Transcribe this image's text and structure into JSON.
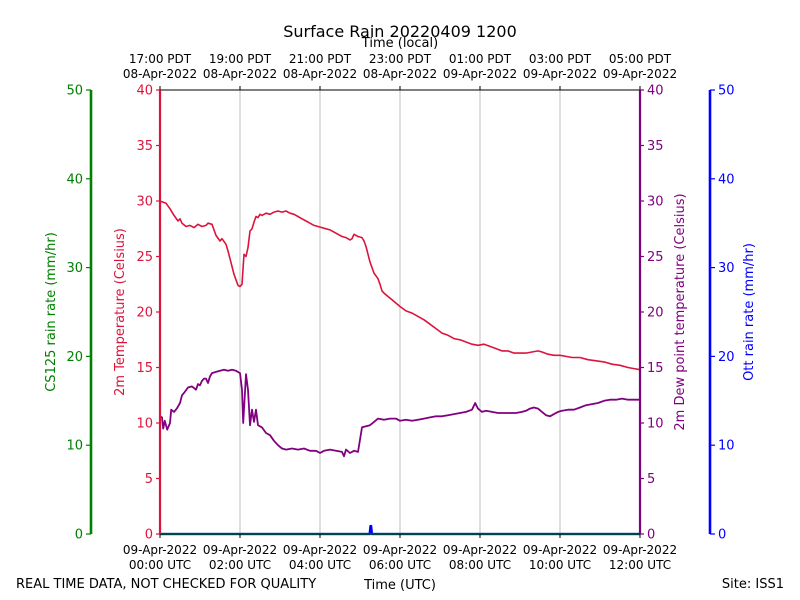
{
  "colors": {
    "temperature": "#dc143c",
    "dewpoint": "#800080",
    "cs125": "#008000",
    "ott": "#0000ff",
    "grid": "#b0b0b0",
    "cs125_trace": "#008b8b"
  },
  "chart_data": {
    "type": "line",
    "title": "Surface Rain 20220409 1200",
    "top_axis_label": "Time (local)",
    "xlabel": "Time (UTC)",
    "x_unit": "hours since 09-Apr-2022 00:00 UTC",
    "xlim": [
      0,
      12
    ],
    "xticks_utc": [
      {
        "x": 0,
        "date": "09-Apr-2022",
        "time": "00:00 UTC"
      },
      {
        "x": 2,
        "date": "09-Apr-2022",
        "time": "02:00 UTC"
      },
      {
        "x": 4,
        "date": "09-Apr-2022",
        "time": "04:00 UTC"
      },
      {
        "x": 6,
        "date": "09-Apr-2022",
        "time": "06:00 UTC"
      },
      {
        "x": 8,
        "date": "09-Apr-2022",
        "time": "08:00 UTC"
      },
      {
        "x": 10,
        "date": "09-Apr-2022",
        "time": "10:00 UTC"
      },
      {
        "x": 12,
        "date": "09-Apr-2022",
        "time": "12:00 UTC"
      }
    ],
    "xticks_local": [
      {
        "x": 0,
        "time": "17:00 PDT",
        "date": "08-Apr-2022"
      },
      {
        "x": 2,
        "time": "19:00 PDT",
        "date": "08-Apr-2022"
      },
      {
        "x": 4,
        "time": "21:00 PDT",
        "date": "08-Apr-2022"
      },
      {
        "x": 6,
        "time": "23:00 PDT",
        "date": "08-Apr-2022"
      },
      {
        "x": 8,
        "time": "01:00 PDT",
        "date": "09-Apr-2022"
      },
      {
        "x": 10,
        "time": "03:00 PDT",
        "date": "09-Apr-2022"
      },
      {
        "x": 12,
        "time": "05:00 PDT",
        "date": "09-Apr-2022"
      }
    ],
    "axes": {
      "temperature": {
        "label": "2m Temperature (Celsius)",
        "ylim": [
          0,
          40
        ],
        "ticks": [
          0,
          5,
          10,
          15,
          20,
          25,
          30,
          35,
          40
        ]
      },
      "dewpoint": {
        "label": "2m Dew point temperature (Celsius)",
        "ylim": [
          0,
          40
        ],
        "ticks": [
          0,
          5,
          10,
          15,
          20,
          25,
          30,
          35,
          40
        ]
      },
      "cs125": {
        "label": "CS125 rain rate (mm/hr)",
        "ylim": [
          0,
          50
        ],
        "ticks": [
          0,
          10,
          20,
          30,
          40,
          50
        ]
      },
      "ott": {
        "label": "Ott rain rate (mm/hr)",
        "ylim": [
          0,
          50
        ],
        "ticks": [
          0,
          10,
          20,
          30,
          40,
          50
        ]
      }
    },
    "series": [
      {
        "name": "2m Temperature",
        "axis": "temperature",
        "points": [
          [
            0,
            30
          ],
          [
            0.15,
            29.8
          ],
          [
            0.25,
            29.3
          ],
          [
            0.35,
            28.7
          ],
          [
            0.45,
            28.2
          ],
          [
            0.5,
            28.4
          ],
          [
            0.55,
            28
          ],
          [
            0.65,
            27.7
          ],
          [
            0.75,
            27.8
          ],
          [
            0.85,
            27.6
          ],
          [
            0.95,
            27.9
          ],
          [
            1.05,
            27.7
          ],
          [
            1.15,
            27.8
          ],
          [
            1.2,
            28
          ],
          [
            1.3,
            27.9
          ],
          [
            1.35,
            27.4
          ],
          [
            1.4,
            26.9
          ],
          [
            1.5,
            26.4
          ],
          [
            1.55,
            26.6
          ],
          [
            1.65,
            26.1
          ],
          [
            1.7,
            25.5
          ],
          [
            1.75,
            24.8
          ],
          [
            1.8,
            24.1
          ],
          [
            1.85,
            23.4
          ],
          [
            1.9,
            22.9
          ],
          [
            1.95,
            22.4
          ],
          [
            2.0,
            22.3
          ],
          [
            2.05,
            22.5
          ],
          [
            2.1,
            25.2
          ],
          [
            2.15,
            25.0
          ],
          [
            2.2,
            25.8
          ],
          [
            2.25,
            27.3
          ],
          [
            2.3,
            27.5
          ],
          [
            2.35,
            28.1
          ],
          [
            2.4,
            28.6
          ],
          [
            2.45,
            28.5
          ],
          [
            2.5,
            28.8
          ],
          [
            2.55,
            28.7
          ],
          [
            2.65,
            28.9
          ],
          [
            2.75,
            28.8
          ],
          [
            2.85,
            29.0
          ],
          [
            2.95,
            29.1
          ],
          [
            3.05,
            29.0
          ],
          [
            3.15,
            29.1
          ],
          [
            3.25,
            28.9
          ],
          [
            3.35,
            28.8
          ],
          [
            3.45,
            28.6
          ],
          [
            3.55,
            28.4
          ],
          [
            3.65,
            28.2
          ],
          [
            3.75,
            28.0
          ],
          [
            3.85,
            27.8
          ],
          [
            3.95,
            27.7
          ],
          [
            4.05,
            27.6
          ],
          [
            4.15,
            27.5
          ],
          [
            4.25,
            27.4
          ],
          [
            4.35,
            27.2
          ],
          [
            4.45,
            27.0
          ],
          [
            4.55,
            26.8
          ],
          [
            4.65,
            26.7
          ],
          [
            4.75,
            26.5
          ],
          [
            4.8,
            26.6
          ],
          [
            4.85,
            27.0
          ],
          [
            4.95,
            26.8
          ],
          [
            5.05,
            26.7
          ],
          [
            5.1,
            26.4
          ],
          [
            5.15,
            25.9
          ],
          [
            5.2,
            25.2
          ],
          [
            5.25,
            24.5
          ],
          [
            5.3,
            24.0
          ],
          [
            5.35,
            23.5
          ],
          [
            5.45,
            23.0
          ],
          [
            5.5,
            22.5
          ],
          [
            5.55,
            21.9
          ],
          [
            5.6,
            21.7
          ],
          [
            5.7,
            21.4
          ],
          [
            5.8,
            21.1
          ],
          [
            5.9,
            20.8
          ],
          [
            6.0,
            20.5
          ],
          [
            6.15,
            20.1
          ],
          [
            6.3,
            19.9
          ],
          [
            6.45,
            19.6
          ],
          [
            6.6,
            19.3
          ],
          [
            6.75,
            18.9
          ],
          [
            6.9,
            18.5
          ],
          [
            7.05,
            18.1
          ],
          [
            7.2,
            17.9
          ],
          [
            7.35,
            17.6
          ],
          [
            7.5,
            17.5
          ],
          [
            7.65,
            17.3
          ],
          [
            7.8,
            17.1
          ],
          [
            7.95,
            17.0
          ],
          [
            8.1,
            17.1
          ],
          [
            8.25,
            16.9
          ],
          [
            8.4,
            16.7
          ],
          [
            8.55,
            16.5
          ],
          [
            8.7,
            16.5
          ],
          [
            8.85,
            16.3
          ],
          [
            9.0,
            16.3
          ],
          [
            9.15,
            16.3
          ],
          [
            9.3,
            16.4
          ],
          [
            9.45,
            16.5
          ],
          [
            9.55,
            16.4
          ],
          [
            9.7,
            16.2
          ],
          [
            9.85,
            16.1
          ],
          [
            10.0,
            16.1
          ],
          [
            10.15,
            16.0
          ],
          [
            10.3,
            15.9
          ],
          [
            10.5,
            15.9
          ],
          [
            10.7,
            15.7
          ],
          [
            10.9,
            15.6
          ],
          [
            11.1,
            15.5
          ],
          [
            11.3,
            15.3
          ],
          [
            11.5,
            15.2
          ],
          [
            11.7,
            15.0
          ],
          [
            11.85,
            14.9
          ],
          [
            12,
            14.8
          ]
        ]
      },
      {
        "name": "2m Dew point temperature",
        "axis": "dewpoint",
        "points": [
          [
            0,
            10.6
          ],
          [
            0.05,
            10.5
          ],
          [
            0.08,
            9.5
          ],
          [
            0.12,
            10.2
          ],
          [
            0.18,
            9.4
          ],
          [
            0.25,
            10.0
          ],
          [
            0.28,
            11.2
          ],
          [
            0.35,
            11.0
          ],
          [
            0.42,
            11.3
          ],
          [
            0.5,
            11.8
          ],
          [
            0.55,
            12.5
          ],
          [
            0.62,
            12.8
          ],
          [
            0.7,
            13.2
          ],
          [
            0.8,
            13.3
          ],
          [
            0.9,
            13.0
          ],
          [
            0.95,
            13.5
          ],
          [
            1.0,
            13.4
          ],
          [
            1.05,
            13.8
          ],
          [
            1.1,
            14.0
          ],
          [
            1.15,
            14.0
          ],
          [
            1.2,
            13.6
          ],
          [
            1.25,
            14.2
          ],
          [
            1.3,
            14.5
          ],
          [
            1.4,
            14.6
          ],
          [
            1.5,
            14.7
          ],
          [
            1.6,
            14.8
          ],
          [
            1.7,
            14.7
          ],
          [
            1.8,
            14.8
          ],
          [
            1.9,
            14.7
          ],
          [
            2.0,
            14.5
          ],
          [
            2.05,
            13.0
          ],
          [
            2.08,
            10.0
          ],
          [
            2.12,
            12.5
          ],
          [
            2.15,
            14.4
          ],
          [
            2.2,
            13.0
          ],
          [
            2.25,
            9.8
          ],
          [
            2.3,
            11.2
          ],
          [
            2.35,
            10.1
          ],
          [
            2.4,
            11.2
          ],
          [
            2.45,
            9.8
          ],
          [
            2.55,
            9.6
          ],
          [
            2.65,
            9.1
          ],
          [
            2.75,
            8.9
          ],
          [
            2.85,
            8.4
          ],
          [
            2.95,
            8.0
          ],
          [
            3.05,
            7.7
          ],
          [
            3.15,
            7.6
          ],
          [
            3.3,
            7.7
          ],
          [
            3.45,
            7.6
          ],
          [
            3.6,
            7.7
          ],
          [
            3.75,
            7.5
          ],
          [
            3.9,
            7.5
          ],
          [
            4.0,
            7.3
          ],
          [
            4.1,
            7.5
          ],
          [
            4.25,
            7.6
          ],
          [
            4.4,
            7.5
          ],
          [
            4.55,
            7.4
          ],
          [
            4.6,
            7.0
          ],
          [
            4.65,
            7.6
          ],
          [
            4.75,
            7.3
          ],
          [
            4.85,
            7.5
          ],
          [
            4.95,
            7.4
          ],
          [
            5.05,
            9.6
          ],
          [
            5.15,
            9.7
          ],
          [
            5.25,
            9.8
          ],
          [
            5.35,
            10.1
          ],
          [
            5.45,
            10.4
          ],
          [
            5.6,
            10.3
          ],
          [
            5.75,
            10.4
          ],
          [
            5.9,
            10.4
          ],
          [
            6.0,
            10.2
          ],
          [
            6.15,
            10.3
          ],
          [
            6.3,
            10.2
          ],
          [
            6.45,
            10.3
          ],
          [
            6.6,
            10.4
          ],
          [
            6.75,
            10.5
          ],
          [
            6.9,
            10.6
          ],
          [
            7.05,
            10.6
          ],
          [
            7.2,
            10.7
          ],
          [
            7.35,
            10.8
          ],
          [
            7.5,
            10.9
          ],
          [
            7.65,
            11.0
          ],
          [
            7.8,
            11.2
          ],
          [
            7.88,
            11.8
          ],
          [
            7.95,
            11.3
          ],
          [
            8.05,
            11.0
          ],
          [
            8.15,
            11.1
          ],
          [
            8.3,
            11.0
          ],
          [
            8.45,
            10.9
          ],
          [
            8.6,
            10.9
          ],
          [
            8.75,
            10.9
          ],
          [
            8.9,
            10.9
          ],
          [
            9.05,
            11.0
          ],
          [
            9.15,
            11.1
          ],
          [
            9.25,
            11.3
          ],
          [
            9.35,
            11.4
          ],
          [
            9.45,
            11.3
          ],
          [
            9.55,
            11.0
          ],
          [
            9.65,
            10.7
          ],
          [
            9.75,
            10.6
          ],
          [
            9.85,
            10.8
          ],
          [
            9.95,
            11.0
          ],
          [
            10.05,
            11.1
          ],
          [
            10.2,
            11.2
          ],
          [
            10.35,
            11.2
          ],
          [
            10.5,
            11.4
          ],
          [
            10.65,
            11.6
          ],
          [
            10.8,
            11.7
          ],
          [
            10.95,
            11.8
          ],
          [
            11.1,
            12.0
          ],
          [
            11.25,
            12.1
          ],
          [
            11.4,
            12.1
          ],
          [
            11.55,
            12.2
          ],
          [
            11.7,
            12.1
          ],
          [
            11.85,
            12.1
          ],
          [
            12,
            12.1
          ]
        ]
      },
      {
        "name": "Ott rain rate",
        "axis": "ott",
        "points": [
          [
            0,
            0
          ],
          [
            5.24,
            0
          ],
          [
            5.26,
            0.9
          ],
          [
            5.28,
            0.9
          ],
          [
            5.3,
            0
          ],
          [
            12,
            0
          ]
        ]
      },
      {
        "name": "CS125 rain rate",
        "axis": "cs125",
        "points": [
          [
            0,
            0
          ],
          [
            12,
            0
          ]
        ]
      }
    ]
  },
  "footer": {
    "left": "REAL TIME DATA, NOT CHECKED FOR QUALITY",
    "right": "Site: ISS1"
  }
}
